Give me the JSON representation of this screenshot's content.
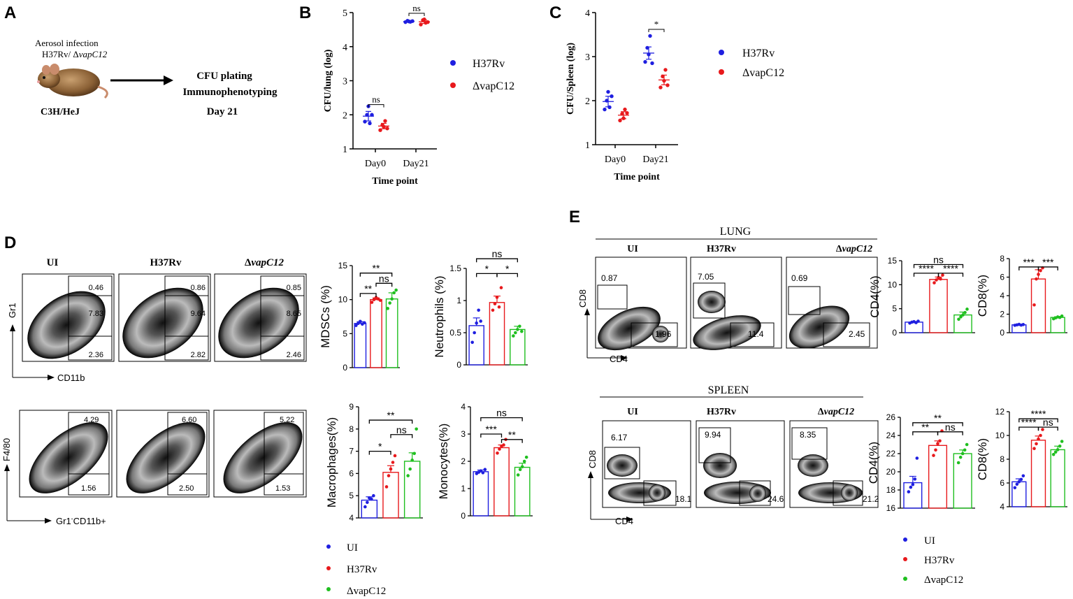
{
  "colors": {
    "ui": "#1f1fe0",
    "h37rv": "#e8191c",
    "vapc12": "#1fbf1f",
    "blue_text": "#1e78c8",
    "red_text": "#e8191c"
  },
  "panel_a": {
    "label": "A",
    "infection_line1": "Aerosol infection",
    "infection_line2_plain": "H37Rv/ Δ",
    "infection_line2_italic": "vapC12",
    "strain": "C3H/HeJ",
    "step1": "CFU plating",
    "step2": "Immunophenotyping",
    "day": "Day 21"
  },
  "facs_d": {
    "label": "D",
    "groups_plain": [
      "UI",
      "H37Rv",
      "Δ"
    ],
    "group_italic": "vapC12",
    "top": {
      "ylabel": "Gr1",
      "xlabel": "CD11b",
      "gates": [
        [
          "0.46",
          "7.83",
          "2.36"
        ],
        [
          "0.86",
          "9.64",
          "2.82"
        ],
        [
          "0.85",
          "8.65",
          "2.46"
        ]
      ]
    },
    "bottom": {
      "ylabel": "F4/80",
      "xlabel_pre": "Gr1",
      "xlabel_sup": "-",
      "xlabel_post": "CD11b+",
      "gates": [
        [
          "4.29",
          "1.56"
        ],
        [
          "6.60",
          "2.50"
        ],
        [
          "5.22",
          "1.53"
        ]
      ]
    }
  },
  "facs_e": {
    "label": "E",
    "groups_plain": [
      "UI",
      "H37Rv",
      "Δ"
    ],
    "group_italic": "vapC12",
    "lung": {
      "title": "LUNG",
      "ylabel": "CD8",
      "xlabel": "CD4",
      "gates": [
        [
          "0.87",
          "1.96"
        ],
        [
          "7.05",
          "11.4"
        ],
        [
          "0.69",
          "2.45"
        ]
      ]
    },
    "spleen": {
      "title": "SPLEEN",
      "ylabel": "CD8",
      "xlabel": "CD4",
      "gates": [
        [
          "6.17",
          "18.1"
        ],
        [
          "9.94",
          "24.6"
        ],
        [
          "8.35",
          "21.2"
        ]
      ]
    }
  },
  "legend_bc": [
    "H37Rv",
    "ΔvapC12"
  ],
  "legend_de": [
    "UI",
    "H37Rv",
    "ΔvapC12"
  ],
  "chart_data": [
    {
      "id": "B",
      "type": "scatter",
      "label": "B",
      "title": "",
      "xlabel": "Time point",
      "ylabel": "CFU/lung (log)",
      "categories": [
        "Day0",
        "Day21"
      ],
      "ylim": [
        1,
        5
      ],
      "yticks": [
        1,
        2,
        3,
        4,
        5
      ],
      "series": [
        {
          "name": "H37Rv",
          "mean": [
            1.96,
            4.74
          ],
          "sem": [
            0.14,
            0.02
          ],
          "points": [
            [
              1.8,
              2.0,
              2.25,
              1.75,
              2.0
            ],
            [
              4.72,
              4.76,
              4.74,
              4.73,
              4.75
            ]
          ]
        },
        {
          "name": "ΔvapC12",
          "mean": [
            1.67,
            4.73
          ],
          "sem": [
            0.08,
            0.05
          ],
          "points": [
            [
              1.55,
              1.7,
              1.65,
              1.82,
              1.6
            ],
            [
              4.65,
              4.78,
              4.8,
              4.7,
              4.72
            ]
          ]
        }
      ],
      "annotations": [
        {
          "cat": 0,
          "text": "ns",
          "y": 2.3
        },
        {
          "cat": 1,
          "text": "ns",
          "y": 4.98
        }
      ]
    },
    {
      "id": "C",
      "type": "scatter",
      "label": "C",
      "title": "",
      "xlabel": "Time point",
      "ylabel": "CFU/Spleen (log)",
      "categories": [
        "Day0",
        "Day21"
      ],
      "ylim": [
        1,
        4
      ],
      "yticks": [
        1,
        2,
        3,
        4
      ],
      "series": [
        {
          "name": "H37Rv",
          "mean": [
            1.98,
            3.08
          ],
          "sem": [
            0.12,
            0.14
          ],
          "points": [
            [
              1.8,
              2.0,
              2.2,
              1.85,
              2.1
            ],
            [
              2.88,
              3.2,
              3.05,
              3.47,
              2.85
            ]
          ]
        },
        {
          "name": "ΔvapC12",
          "mean": [
            1.67,
            2.47
          ],
          "sem": [
            0.08,
            0.11
          ],
          "points": [
            [
              1.55,
              1.7,
              1.6,
              1.8,
              1.72
            ],
            [
              2.3,
              2.55,
              2.45,
              2.7,
              2.35
            ]
          ]
        }
      ],
      "annotations": [
        {
          "cat": 1,
          "text": "*",
          "y": 3.62
        }
      ]
    },
    {
      "id": "MDSC",
      "type": "bar",
      "label": "",
      "xlabel": "",
      "ylabel": "MDSCs (%)",
      "categories": [
        "UI",
        "H37Rv",
        "ΔvapC12"
      ],
      "ylim": [
        0,
        15
      ],
      "yticks": [
        0,
        5,
        10,
        15
      ],
      "values": [
        6.5,
        10.0,
        10.1
      ],
      "sem": [
        0.25,
        0.25,
        0.9
      ],
      "points": [
        [
          6.2,
          6.5,
          6.8,
          6.4,
          6.6
        ],
        [
          9.6,
          10.0,
          10.3,
          10.1,
          9.9
        ],
        [
          8.7,
          9.5,
          10.1,
          11.0,
          11.4
        ]
      ],
      "brackets": [
        {
          "from": 0,
          "to": 2,
          "text": "**",
          "y": 13.9
        },
        {
          "from": 1,
          "to": 2,
          "text": "ns",
          "y": 12.4
        },
        {
          "from": 0,
          "to": 1,
          "text": "**",
          "y": 10.9
        }
      ]
    },
    {
      "id": "Neutrophils",
      "type": "bar",
      "label": "",
      "xlabel": "",
      "ylabel": "Neutrophils (%)",
      "categories": [
        "UI",
        "H37Rv",
        "ΔvapC12"
      ],
      "ylim": [
        0,
        1.5
      ],
      "yticks": [
        0,
        0.5,
        1.0,
        1.5
      ],
      "values": [
        0.61,
        0.97,
        0.55
      ],
      "sem": [
        0.12,
        0.1,
        0.05
      ],
      "points": [
        [
          0.35,
          0.5,
          0.65,
          0.85,
          0.68
        ],
        [
          0.85,
          0.95,
          1.05,
          0.9,
          1.2
        ],
        [
          0.45,
          0.5,
          0.55,
          0.6,
          0.52
        ]
      ],
      "brackets": [
        {
          "from": 0,
          "to": 2,
          "text": "ns",
          "y": 1.65
        },
        {
          "from": 0,
          "to": 1,
          "text": "*",
          "y": 1.42
        },
        {
          "from": 1,
          "to": 2,
          "text": "*",
          "y": 1.42
        }
      ]
    },
    {
      "id": "Macrophages",
      "type": "bar",
      "label": "",
      "xlabel": "",
      "ylabel": "Macrophages(%)",
      "categories": [
        "UI",
        "H37Rv",
        "ΔvapC12"
      ],
      "ylim": [
        4,
        9
      ],
      "yticks": [
        4,
        5,
        6,
        7,
        8,
        9
      ],
      "values": [
        4.8,
        6.05,
        6.55
      ],
      "sem": [
        0.15,
        0.3,
        0.38
      ],
      "points": [
        [
          4.5,
          4.7,
          4.9,
          4.85,
          5.0
        ],
        [
          5.4,
          5.9,
          6.2,
          6.5,
          6.8
        ],
        [
          5.9,
          6.2,
          6.6,
          6.9,
          8.0
        ]
      ],
      "brackets": [
        {
          "from": 0,
          "to": 2,
          "text": "**",
          "y": 8.4
        },
        {
          "from": 1,
          "to": 2,
          "text": "ns",
          "y": 7.75
        },
        {
          "from": 0,
          "to": 1,
          "text": "*",
          "y": 7.0
        }
      ]
    },
    {
      "id": "Monocytes",
      "type": "bar",
      "label": "",
      "xlabel": "",
      "ylabel": "Monocytes(%)",
      "categories": [
        "UI",
        "H37Rv",
        "ΔvapC12"
      ],
      "ylim": [
        0,
        4
      ],
      "yticks": [
        0,
        1,
        2,
        3,
        4
      ],
      "values": [
        1.62,
        2.5,
        1.78
      ],
      "sem": [
        0.06,
        0.1,
        0.15
      ],
      "points": [
        [
          1.55,
          1.6,
          1.65,
          1.58,
          1.7
        ],
        [
          2.3,
          2.45,
          2.55,
          2.6,
          2.8
        ],
        [
          1.5,
          1.7,
          1.8,
          2.0,
          2.15
        ]
      ],
      "brackets": [
        {
          "from": 0,
          "to": 2,
          "text": "ns",
          "y": 3.6
        },
        {
          "from": 0,
          "to": 1,
          "text": "***",
          "y": 3.0
        },
        {
          "from": 1,
          "to": 2,
          "text": "**",
          "y": 2.8
        }
      ]
    },
    {
      "id": "LungCD4",
      "type": "bar",
      "label": "",
      "xlabel": "",
      "ylabel": "CD4(%)",
      "categories": [
        "UI",
        "H37Rv",
        "ΔvapC12"
      ],
      "ylim": [
        0,
        15
      ],
      "yticks": [
        0,
        5,
        10,
        15
      ],
      "values": [
        2.2,
        11.1,
        3.7
      ],
      "sem": [
        0.1,
        0.5,
        0.6
      ],
      "points": [
        [
          2.0,
          2.2,
          2.3,
          2.1,
          2.4
        ],
        [
          10.4,
          11.0,
          11.5,
          11.2,
          12.0
        ],
        [
          2.8,
          3.3,
          3.7,
          4.2,
          4.9
        ]
      ],
      "brackets": [
        {
          "from": 0,
          "to": 2,
          "text": "ns",
          "y": 14.2
        },
        {
          "from": 0,
          "to": 1,
          "text": "****",
          "y": 12.4
        },
        {
          "from": 1,
          "to": 2,
          "text": "****",
          "y": 12.4
        }
      ]
    },
    {
      "id": "LungCD8",
      "type": "bar",
      "label": "",
      "xlabel": "",
      "ylabel": "CD8(%)",
      "categories": [
        "UI",
        "H37Rv",
        "ΔvapC12"
      ],
      "ylim": [
        0,
        8
      ],
      "yticks": [
        0,
        2,
        4,
        6,
        8
      ],
      "values": [
        0.85,
        5.8,
        1.65
      ],
      "sem": [
        0.03,
        1.0,
        0.08
      ],
      "points": [
        [
          0.8,
          0.85,
          0.9,
          0.82,
          0.88
        ],
        [
          3.0,
          5.8,
          6.3,
          6.7,
          7.0
        ],
        [
          1.5,
          1.6,
          1.7,
          1.65,
          1.8
        ]
      ],
      "brackets": [
        {
          "from": 0,
          "to": 1,
          "text": "***",
          "y": 7.1
        },
        {
          "from": 1,
          "to": 2,
          "text": "***",
          "y": 7.1
        }
      ]
    },
    {
      "id": "SpleenCD4",
      "type": "bar",
      "label": "",
      "xlabel": "",
      "ylabel": "CD4(%)",
      "categories": [
        "UI",
        "H37Rv",
        "ΔvapC12"
      ],
      "ylim": [
        16,
        26
      ],
      "yticks": [
        16,
        18,
        20,
        22,
        24,
        26
      ],
      "values": [
        18.8,
        22.9,
        22.0
      ],
      "sem": [
        0.7,
        0.5,
        0.4
      ],
      "points": [
        [
          17.8,
          18.3,
          18.6,
          19.2,
          21.5
        ],
        [
          21.8,
          22.4,
          23.1,
          23.4,
          24.5
        ],
        [
          21.0,
          21.6,
          22.0,
          22.4,
          23.0
        ]
      ],
      "brackets": [
        {
          "from": 0,
          "to": 2,
          "text": "**",
          "y": 25.4
        },
        {
          "from": 0,
          "to": 1,
          "text": "**",
          "y": 24.4
        },
        {
          "from": 1,
          "to": 2,
          "text": "ns",
          "y": 24.4
        }
      ]
    },
    {
      "id": "SpleenCD8",
      "type": "bar",
      "label": "",
      "xlabel": "",
      "ylabel": "CD8(%)",
      "categories": [
        "UI",
        "H37Rv",
        "ΔvapC12"
      ],
      "ylim": [
        4,
        12
      ],
      "yticks": [
        4,
        6,
        8,
        10,
        12
      ],
      "values": [
        6.1,
        9.6,
        8.8
      ],
      "sem": [
        0.25,
        0.35,
        0.3
      ],
      "points": [
        [
          5.6,
          5.9,
          6.1,
          6.3,
          6.6
        ],
        [
          8.9,
          9.3,
          9.7,
          10.0,
          10.5
        ],
        [
          8.4,
          8.6,
          8.8,
          9.1,
          9.5
        ]
      ],
      "brackets": [
        {
          "from": 0,
          "to": 2,
          "text": "****",
          "y": 11.4
        },
        {
          "from": 0,
          "to": 1,
          "text": "****",
          "y": 10.7
        },
        {
          "from": 1,
          "to": 2,
          "text": "ns",
          "y": 10.7
        }
      ]
    }
  ]
}
